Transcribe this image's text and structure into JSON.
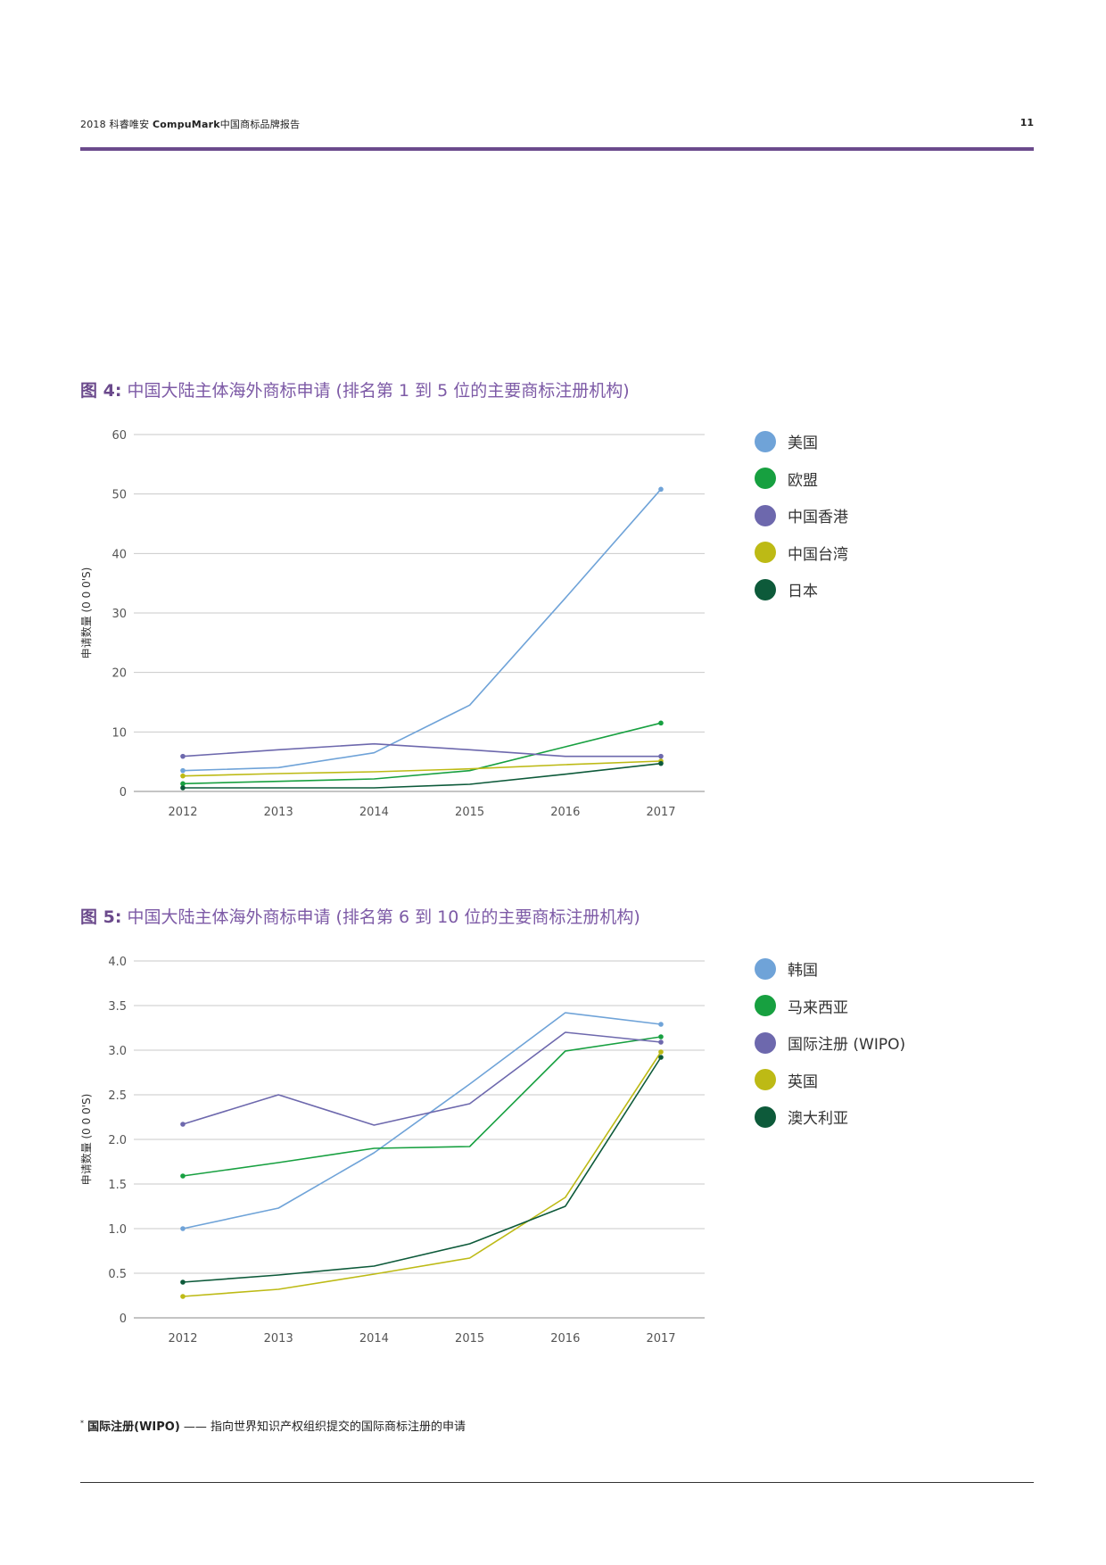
{
  "header": {
    "year": "2018",
    "title_pre": "科睿唯安",
    "brand": "CompuMark",
    "title_post": "中国商标品牌报告",
    "page_number": "11"
  },
  "footnote": {
    "marker": "*",
    "term": "国际注册(WIPO)",
    "text": "—— 指向世界知识产权组织提交的国际商标注册的申请"
  },
  "chart_data": [
    {
      "type": "line",
      "label": "图 4:",
      "title": "中国大陆主体海外商标申请 (排名第 1 到 5 位的主要商标注册机构)",
      "xlabel": "",
      "ylabel": "申请数量 (0 0 0'S)",
      "categories": [
        "2012",
        "2013",
        "2014",
        "2015",
        "2016",
        "2017"
      ],
      "ylim": [
        0,
        60
      ],
      "yticks": [
        0,
        10,
        20,
        30,
        40,
        50,
        60
      ],
      "ytick_labels": [
        "0",
        "10",
        "20",
        "30",
        "40",
        "50",
        "60"
      ],
      "grid": true,
      "legend_position": "right",
      "series": [
        {
          "name": "美国",
          "color": "#6fa3d8",
          "values": [
            3.5,
            4.0,
            6.5,
            14.5,
            32.5,
            50.8
          ]
        },
        {
          "name": "欧盟",
          "color": "#17a040",
          "values": [
            1.3,
            1.7,
            2.1,
            3.5,
            7.5,
            11.5
          ]
        },
        {
          "name": "中国香港",
          "color": "#6d68ad",
          "values": [
            5.9,
            7.0,
            8.0,
            7.0,
            5.9,
            5.9
          ]
        },
        {
          "name": "中国台湾",
          "color": "#bdba15",
          "values": [
            2.6,
            3.0,
            3.3,
            3.8,
            4.5,
            5.1
          ]
        },
        {
          "name": "日本",
          "color": "#0d5a3a",
          "values": [
            0.6,
            0.6,
            0.6,
            1.2,
            2.9,
            4.7
          ]
        }
      ]
    },
    {
      "type": "line",
      "label": "图 5:",
      "title": "中国大陆主体海外商标申请 (排名第 6 到 10 位的主要商标注册机构)",
      "xlabel": "",
      "ylabel": "申请数量 (0 0 0'S)",
      "categories": [
        "2012",
        "2013",
        "2014",
        "2015",
        "2016",
        "2017"
      ],
      "ylim": [
        0,
        4
      ],
      "yticks": [
        0,
        0.5,
        1.0,
        1.5,
        2.0,
        2.5,
        3.0,
        3.5,
        4.0
      ],
      "ytick_labels": [
        "0",
        "0.5",
        "1.0",
        "1.5",
        "2.0",
        "2.5",
        "3.0",
        "3.5",
        "4.0"
      ],
      "grid": true,
      "legend_position": "right",
      "series": [
        {
          "name": "韩国",
          "color": "#6fa3d8",
          "values": [
            1.0,
            1.23,
            1.85,
            2.62,
            3.42,
            3.29
          ]
        },
        {
          "name": "马来西亚",
          "color": "#17a040",
          "values": [
            1.59,
            1.74,
            1.9,
            1.92,
            2.99,
            3.15
          ]
        },
        {
          "name": "国际注册 (WIPO)",
          "color": "#6d68ad",
          "values": [
            2.17,
            2.5,
            2.16,
            2.4,
            3.2,
            3.09
          ]
        },
        {
          "name": "英国",
          "color": "#bdba15",
          "values": [
            0.24,
            0.32,
            0.49,
            0.67,
            1.35,
            2.98
          ]
        },
        {
          "name": "澳大利亚",
          "color": "#0d5a3a",
          "values": [
            0.4,
            0.48,
            0.58,
            0.83,
            1.25,
            2.92
          ]
        }
      ]
    }
  ]
}
